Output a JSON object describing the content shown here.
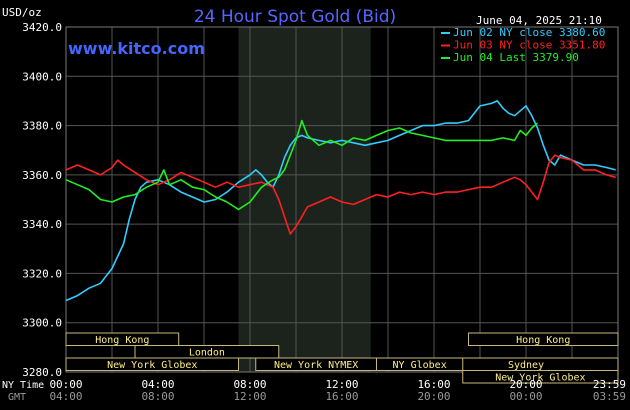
{
  "chart_data": {
    "type": "line",
    "title": "24 Hour Spot Gold (Bid)",
    "ylabel": "USD/oz",
    "website": "www.kitco.com",
    "timestamp": "June 04, 2025 21:10",
    "ylim": [
      3280,
      3420
    ],
    "y_ticks": [
      "3420.0",
      "3400.0",
      "3380.0",
      "3360.0",
      "3340.0",
      "3320.0",
      "3300.0",
      "3280.0"
    ],
    "x_range_hours": [
      0,
      24
    ],
    "x_ticks_ny": [
      "00:00",
      "04:00",
      "08:00",
      "12:00",
      "16:00",
      "20:00",
      "23:59"
    ],
    "x_ticks_gmt": [
      "04:00",
      "08:00",
      "12:00",
      "16:00",
      "20:00",
      "00:00",
      "03:59"
    ],
    "ny_time_label": "NY Time",
    "gmt_label": "GMT",
    "grid": true,
    "legend_position": "top-right",
    "shaded_hours": [
      7.5,
      13.25
    ],
    "markets": [
      {
        "name": "Hong Kong",
        "start": 0,
        "end": 4.9,
        "row": 0
      },
      {
        "name": "Hong Kong",
        "start": 17.5,
        "end": 24,
        "row": 0
      },
      {
        "name": "London",
        "start": 3,
        "end": 9.25,
        "row": 1
      },
      {
        "name": "Sydney",
        "start": 16,
        "end": 24,
        "row": 2
      },
      {
        "name": "New York Globex",
        "start": 0,
        "end": 7.5,
        "row": 2
      },
      {
        "name": "New York NYMEX",
        "start": 8.25,
        "end": 13.5,
        "row": 2
      },
      {
        "name": "NY Globex",
        "start": 13.5,
        "end": 17.25,
        "row": 2
      },
      {
        "name": "New York Globex",
        "start": 17.25,
        "end": 24,
        "row": 3
      }
    ],
    "series": [
      {
        "name": "Jun 02 NY close 3380.60",
        "color": "#33ccff",
        "points": [
          [
            0,
            3309
          ],
          [
            0.5,
            3311
          ],
          [
            1,
            3314
          ],
          [
            1.5,
            3316
          ],
          [
            2,
            3322
          ],
          [
            2.5,
            3332
          ],
          [
            2.75,
            3342
          ],
          [
            3,
            3350
          ],
          [
            3.25,
            3355
          ],
          [
            3.5,
            3357
          ],
          [
            4,
            3358
          ],
          [
            4.5,
            3356
          ],
          [
            5,
            3353
          ],
          [
            5.5,
            3351
          ],
          [
            6,
            3349
          ],
          [
            6.5,
            3350
          ],
          [
            7,
            3353
          ],
          [
            7.5,
            3357
          ],
          [
            8,
            3360
          ],
          [
            8.25,
            3362
          ],
          [
            8.5,
            3360
          ],
          [
            8.75,
            3357
          ],
          [
            9,
            3355
          ],
          [
            9.25,
            3360
          ],
          [
            9.5,
            3367
          ],
          [
            9.75,
            3372
          ],
          [
            10,
            3375
          ],
          [
            10.25,
            3376
          ],
          [
            10.5,
            3375
          ],
          [
            11,
            3374
          ],
          [
            11.5,
            3373
          ],
          [
            12,
            3374
          ],
          [
            12.5,
            3373
          ],
          [
            13,
            3372
          ],
          [
            13.5,
            3373
          ],
          [
            14,
            3374
          ],
          [
            14.5,
            3376
          ],
          [
            15,
            3378
          ],
          [
            15.5,
            3380
          ],
          [
            16,
            3380
          ],
          [
            16.5,
            3381
          ],
          [
            17,
            3381
          ],
          [
            17.5,
            3382
          ],
          [
            18,
            3388
          ],
          [
            18.5,
            3389
          ],
          [
            18.75,
            3390
          ],
          [
            19,
            3387
          ],
          [
            19.25,
            3385
          ],
          [
            19.5,
            3384
          ],
          [
            19.75,
            3386
          ],
          [
            20,
            3388
          ],
          [
            20.25,
            3384
          ],
          [
            20.5,
            3379
          ],
          [
            20.75,
            3372
          ],
          [
            21,
            3366
          ],
          [
            21.25,
            3364
          ],
          [
            21.5,
            3368
          ],
          [
            22,
            3366
          ],
          [
            22.5,
            3364
          ],
          [
            23,
            3364
          ],
          [
            23.5,
            3363
          ],
          [
            23.9,
            3362
          ]
        ]
      },
      {
        "name": "Jun 03 NY close 3351.80",
        "color": "#ff2020",
        "points": [
          [
            0,
            3362
          ],
          [
            0.5,
            3364
          ],
          [
            1,
            3362
          ],
          [
            1.5,
            3360
          ],
          [
            2,
            3363
          ],
          [
            2.25,
            3366
          ],
          [
            2.5,
            3364
          ],
          [
            3,
            3361
          ],
          [
            3.5,
            3358
          ],
          [
            4,
            3356
          ],
          [
            4.5,
            3358
          ],
          [
            5,
            3361
          ],
          [
            5.5,
            3359
          ],
          [
            6,
            3357
          ],
          [
            6.5,
            3355
          ],
          [
            7,
            3357
          ],
          [
            7.5,
            3355
          ],
          [
            8,
            3356
          ],
          [
            8.5,
            3357
          ],
          [
            9,
            3355
          ],
          [
            9.25,
            3350
          ],
          [
            9.5,
            3343
          ],
          [
            9.75,
            3336
          ],
          [
            10,
            3339
          ],
          [
            10.25,
            3343
          ],
          [
            10.5,
            3347
          ],
          [
            11,
            3349
          ],
          [
            11.5,
            3351
          ],
          [
            12,
            3349
          ],
          [
            12.5,
            3348
          ],
          [
            13,
            3350
          ],
          [
            13.5,
            3352
          ],
          [
            14,
            3351
          ],
          [
            14.5,
            3353
          ],
          [
            15,
            3352
          ],
          [
            15.5,
            3353
          ],
          [
            16,
            3352
          ],
          [
            16.5,
            3353
          ],
          [
            17,
            3353
          ],
          [
            17.5,
            3354
          ],
          [
            18,
            3355
          ],
          [
            18.5,
            3355
          ],
          [
            19,
            3357
          ],
          [
            19.5,
            3359
          ],
          [
            19.75,
            3358
          ],
          [
            20,
            3356
          ],
          [
            20.25,
            3353
          ],
          [
            20.5,
            3350
          ],
          [
            20.75,
            3357
          ],
          [
            21,
            3365
          ],
          [
            21.25,
            3368
          ],
          [
            21.5,
            3367
          ],
          [
            22,
            3366
          ],
          [
            22.5,
            3362
          ],
          [
            23,
            3362
          ],
          [
            23.5,
            3360
          ],
          [
            23.9,
            3359
          ]
        ]
      },
      {
        "name": "Jun 04 Last 3379.90",
        "color": "#22ee22",
        "points": [
          [
            0,
            3358
          ],
          [
            0.5,
            3356
          ],
          [
            1,
            3354
          ],
          [
            1.5,
            3350
          ],
          [
            2,
            3349
          ],
          [
            2.5,
            3351
          ],
          [
            3,
            3352
          ],
          [
            3.5,
            3355
          ],
          [
            4,
            3357
          ],
          [
            4.25,
            3362
          ],
          [
            4.5,
            3356
          ],
          [
            5,
            3358
          ],
          [
            5.5,
            3355
          ],
          [
            6,
            3354
          ],
          [
            6.5,
            3351
          ],
          [
            7,
            3349
          ],
          [
            7.5,
            3346
          ],
          [
            8,
            3349
          ],
          [
            8.5,
            3355
          ],
          [
            9,
            3358
          ],
          [
            9.25,
            3359
          ],
          [
            9.5,
            3362
          ],
          [
            9.75,
            3368
          ],
          [
            10,
            3374
          ],
          [
            10.25,
            3382
          ],
          [
            10.5,
            3376
          ],
          [
            11,
            3372
          ],
          [
            11.5,
            3374
          ],
          [
            12,
            3372
          ],
          [
            12.5,
            3375
          ],
          [
            13,
            3374
          ],
          [
            13.5,
            3376
          ],
          [
            14,
            3378
          ],
          [
            14.5,
            3379
          ],
          [
            15,
            3377
          ],
          [
            15.5,
            3376
          ],
          [
            16,
            3375
          ],
          [
            16.5,
            3374
          ],
          [
            17,
            3374
          ],
          [
            17.5,
            3374
          ],
          [
            18,
            3374
          ],
          [
            18.5,
            3374
          ],
          [
            19,
            3375
          ],
          [
            19.5,
            3374
          ],
          [
            19.75,
            3378
          ],
          [
            20,
            3376
          ],
          [
            20.25,
            3379
          ],
          [
            20.5,
            3381
          ]
        ]
      }
    ]
  }
}
